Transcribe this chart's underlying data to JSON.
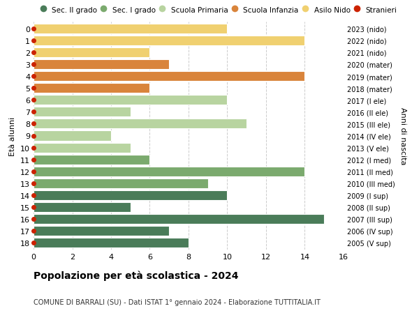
{
  "ages": [
    18,
    17,
    16,
    15,
    14,
    13,
    12,
    11,
    10,
    9,
    8,
    7,
    6,
    5,
    4,
    3,
    2,
    1,
    0
  ],
  "right_labels": [
    "2005 (V sup)",
    "2006 (IV sup)",
    "2007 (III sup)",
    "2008 (II sup)",
    "2009 (I sup)",
    "2010 (III med)",
    "2011 (II med)",
    "2012 (I med)",
    "2013 (V ele)",
    "2014 (IV ele)",
    "2015 (III ele)",
    "2016 (II ele)",
    "2017 (I ele)",
    "2018 (mater)",
    "2019 (mater)",
    "2020 (mater)",
    "2021 (nido)",
    "2022 (nido)",
    "2023 (nido)"
  ],
  "values": [
    8,
    7,
    15,
    5,
    10,
    9,
    14,
    6,
    5,
    4,
    11,
    5,
    10,
    6,
    14,
    7,
    6,
    14,
    10
  ],
  "bar_colors": [
    "#4a7c59",
    "#4a7c59",
    "#4a7c59",
    "#4a7c59",
    "#4a7c59",
    "#7baa6e",
    "#7baa6e",
    "#7baa6e",
    "#b8d4a0",
    "#b8d4a0",
    "#b8d4a0",
    "#b8d4a0",
    "#b8d4a0",
    "#d9843b",
    "#d9843b",
    "#d9843b",
    "#f0d070",
    "#f0d070",
    "#f0d070"
  ],
  "dot_color": "#cc2200",
  "legend_labels": [
    "Sec. II grado",
    "Sec. I grado",
    "Scuola Primaria",
    "Scuola Infanzia",
    "Asilo Nido",
    "Stranieri"
  ],
  "legend_colors": [
    "#4a7c59",
    "#7baa6e",
    "#b8d4a0",
    "#d9843b",
    "#f0d070",
    "#cc2200"
  ],
  "ylabel_left": "Età alunni",
  "ylabel_right": "Anni di nascita",
  "title": "Popolazione per età scolastica - 2024",
  "subtitle": "COMUNE DI BARRALI (SU) - Dati ISTAT 1° gennaio 2024 - Elaborazione TUTTITALIA.IT",
  "xlim": [
    0,
    16
  ],
  "xticks": [
    0,
    2,
    4,
    6,
    8,
    10,
    12,
    14,
    16
  ],
  "bg_color": "#ffffff",
  "grid_color": "#cccccc",
  "bar_height": 0.82
}
